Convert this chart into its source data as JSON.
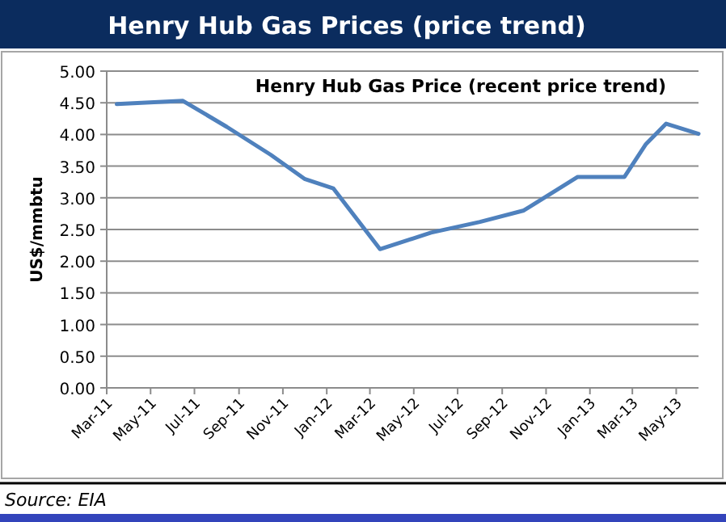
{
  "chart_data": {
    "type": "line",
    "title": "Henry Hub Gas Prices (price trend)",
    "subtitle": "Henry Hub Gas Price (recent price trend)",
    "ylabel": "US$/mmbtu",
    "annotations": [
      "Source: EIA"
    ],
    "x": [
      "2011-03-15",
      "2011-06-15",
      "2011-08-15",
      "2011-10-15",
      "2011-12-01",
      "2012-01-10",
      "2012-03-15",
      "2012-05-25",
      "2012-08-01",
      "2012-10-01",
      "2012-12-15",
      "2013-02-18",
      "2013-03-20",
      "2013-04-17",
      "2013-06-01"
    ],
    "series": [
      {
        "color": "#4f81bd",
        "values": [
          4.48,
          4.53,
          4.12,
          3.68,
          3.3,
          3.15,
          2.19,
          2.45,
          2.62,
          2.8,
          3.33,
          3.33,
          3.85,
          4.17,
          4.01
        ]
      }
    ],
    "xlim": [
      "2011-03-01",
      "2013-06-01"
    ],
    "xticks": [
      {
        "value": "2011-03-01",
        "label": "Mar-11"
      },
      {
        "value": "2011-05-01",
        "label": "May-11"
      },
      {
        "value": "2011-07-01",
        "label": "Jul-11"
      },
      {
        "value": "2011-09-01",
        "label": "Sep-11"
      },
      {
        "value": "2011-11-01",
        "label": "Nov-11"
      },
      {
        "value": "2012-01-01",
        "label": "Jan-12"
      },
      {
        "value": "2012-03-01",
        "label": "Mar-12"
      },
      {
        "value": "2012-05-01",
        "label": "May-12"
      },
      {
        "value": "2012-07-01",
        "label": "Jul-12"
      },
      {
        "value": "2012-09-01",
        "label": "Sep-12"
      },
      {
        "value": "2012-11-01",
        "label": "Nov-12"
      },
      {
        "value": "2013-01-01",
        "label": "Jan-13"
      },
      {
        "value": "2013-03-01",
        "label": "Mar-13"
      },
      {
        "value": "2013-05-01",
        "label": "May-13"
      }
    ],
    "ylim": [
      0,
      5
    ],
    "yticks": [
      {
        "value": 0,
        "label": "0.00"
      },
      {
        "value": 0.5,
        "label": "0.50"
      },
      {
        "value": 1,
        "label": "1.00"
      },
      {
        "value": 1.5,
        "label": "1.50"
      },
      {
        "value": 2,
        "label": "2.00"
      },
      {
        "value": 2.5,
        "label": "2.50"
      },
      {
        "value": 3,
        "label": "3.00"
      },
      {
        "value": 3.5,
        "label": "3.50"
      },
      {
        "value": 4,
        "label": "4.00"
      },
      {
        "value": 4.5,
        "label": "4.50"
      },
      {
        "value": 5,
        "label": "5.00"
      }
    ],
    "grid": "y",
    "line_style": "solid",
    "marker": "none"
  }
}
